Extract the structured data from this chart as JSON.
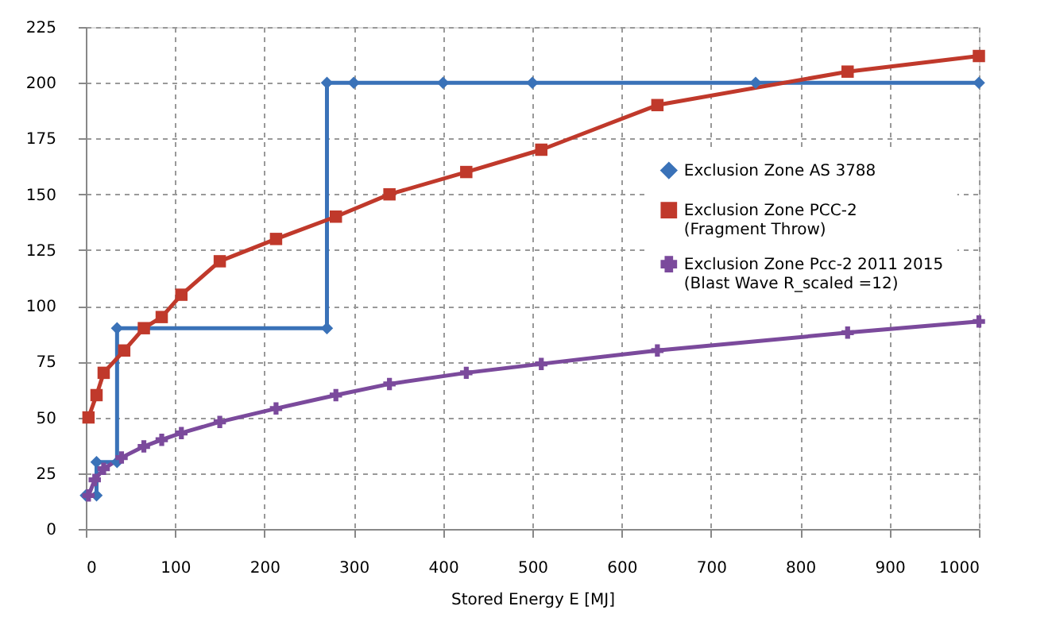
{
  "chart_data": {
    "type": "line",
    "xlabel": "Stored Energy E [MJ]",
    "xlim": [
      0,
      1000
    ],
    "xticks": [
      0,
      100,
      200,
      300,
      400,
      500,
      600,
      700,
      800,
      900,
      1000
    ],
    "ylim": [
      0,
      225
    ],
    "yticks": [
      0,
      25,
      50,
      75,
      100,
      125,
      150,
      175,
      200,
      225
    ],
    "grid": true,
    "legend": "right",
    "line_style": "solid",
    "series": [
      {
        "name": "Exclusion Zone  AS 3788",
        "color": "#3a72b8",
        "marker": "diamond",
        "x": [
          0,
          12,
          12,
          35,
          35,
          270,
          270,
          300,
          400,
          500,
          750,
          1000
        ],
        "values": [
          15,
          15,
          30,
          30,
          90,
          90,
          200,
          200,
          200,
          200,
          200,
          200
        ]
      },
      {
        "name": "Exclusion Zone PCC-2 (Fragment Throw)",
        "color": "#c0392b",
        "marker": "square",
        "x": [
          3,
          12,
          20,
          43,
          65,
          85,
          107,
          150,
          213,
          280,
          340,
          426,
          510,
          640,
          853,
          1000
        ],
        "values": [
          50,
          60,
          70,
          80,
          90,
          95,
          105,
          120,
          130,
          140,
          150,
          160,
          170,
          190,
          205,
          212
        ]
      },
      {
        "name": "Exclusion Zone Pcc-2 2011 2015 (Blast Wave R_scaled =12)",
        "color": "#7b4a9c",
        "marker": "cross",
        "x": [
          3,
          10,
          20,
          40,
          65,
          85,
          107,
          150,
          213,
          280,
          340,
          426,
          510,
          640,
          853,
          1000
        ],
        "values": [
          15,
          22,
          27,
          32,
          37,
          40,
          43,
          48,
          54,
          60,
          65,
          70,
          74,
          80,
          88,
          93
        ]
      }
    ]
  }
}
